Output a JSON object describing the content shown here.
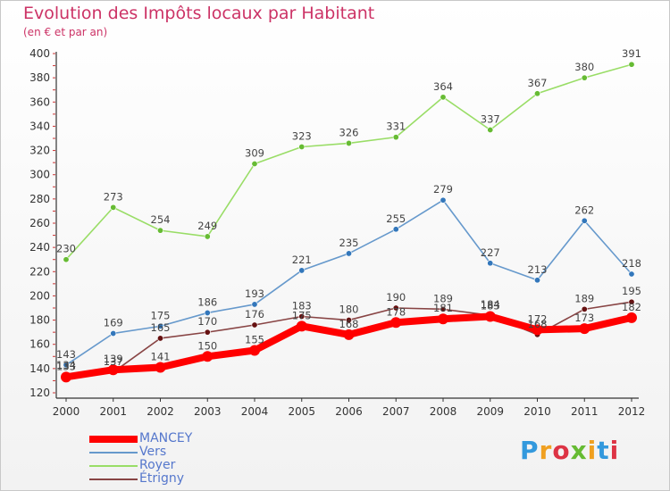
{
  "title": "Evolution des Impôts locaux par Habitant",
  "subtitle": "(en € et par an)",
  "logo": {
    "text": "Proxiti",
    "colors": [
      "#3399dd",
      "#f0a020",
      "#dd3344",
      "#66bb33",
      "#f0a020",
      "#3399dd",
      "#dd3344"
    ]
  },
  "chart_data": {
    "type": "line",
    "x": [
      "2000",
      "2001",
      "2002",
      "2003",
      "2004",
      "2005",
      "2006",
      "2007",
      "2008",
      "2009",
      "2010",
      "2011",
      "2012"
    ],
    "yticks": [
      120,
      140,
      160,
      180,
      200,
      220,
      240,
      260,
      280,
      300,
      320,
      340,
      360,
      380,
      400
    ],
    "ylim": [
      120,
      400
    ],
    "grid": false,
    "legend_position": "bottom-left",
    "series": [
      {
        "name": "MANCEY",
        "color": "#ff0000",
        "marker": "#ff0000",
        "values": [
          133,
          139,
          141,
          150,
          155,
          175,
          168,
          178,
          181,
          183,
          172,
          173,
          182
        ],
        "labels": [
          "133",
          "139",
          "141",
          "150",
          "155",
          "175",
          "168",
          "178",
          "181",
          "183",
          "172",
          "173",
          "182"
        ]
      },
      {
        "name": "Vers",
        "color": "#6699cc",
        "marker": "#3377bb",
        "values": [
          143,
          169,
          175,
          186,
          193,
          221,
          235,
          255,
          279,
          227,
          213,
          262,
          218
        ],
        "labels": [
          "143",
          "169",
          "175",
          "186",
          "193",
          "221",
          "235",
          "255",
          "279",
          "227",
          "213",
          "262",
          "218"
        ]
      },
      {
        "name": "Royer",
        "color": "#99dd66",
        "marker": "#66bb33",
        "values": [
          230,
          273,
          254,
          249,
          309,
          323,
          326,
          331,
          364,
          337,
          367,
          380,
          391
        ],
        "labels": [
          "230",
          "273",
          "254",
          "249",
          "309",
          "323",
          "326",
          "331",
          "364",
          "337",
          "367",
          "380",
          "391"
        ]
      },
      {
        "name": "Étrigny",
        "color": "#884444",
        "marker": "#661111",
        "values": [
          134,
          137,
          165,
          170,
          176,
          183,
          180,
          190,
          189,
          184,
          168,
          189,
          195
        ],
        "labels": [
          "134",
          "137",
          "165",
          "170",
          "176",
          "183",
          "180",
          "190",
          "189",
          "184",
          "168",
          "189",
          "195"
        ]
      }
    ]
  }
}
